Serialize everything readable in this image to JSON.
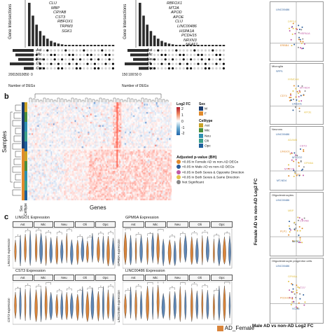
{
  "panel_a": {
    "upset_left": {
      "ylabel": "Gene Intersections",
      "xlabel": "Number of DEGs",
      "celltypes": [
        "Ast",
        "Mic",
        "Neu",
        "Oli",
        "Opc"
      ],
      "x_ticks": [
        "200",
        "150",
        "100",
        "50",
        "0"
      ],
      "genes": [
        "CLU",
        "MBP",
        "CRYAB",
        "CST3",
        "RBFOX1",
        "TRPM3",
        "SGK1"
      ]
    },
    "upset_right": {
      "ylabel": "Gene Intersections",
      "xlabel": "Number of DEGs",
      "celltypes": [
        "Ast",
        "Mic",
        "Neu",
        "Oli",
        "Opc"
      ],
      "x_ticks": [
        "150",
        "100",
        "50",
        "0"
      ],
      "genes": [
        "RBFOX1",
        "MT2A",
        "APOD",
        "APOE",
        "CLU",
        "LINC00486",
        "HSPA1A",
        "PCDH15",
        "NRXN3",
        "NEAT1"
      ]
    }
  },
  "panel_b": {
    "letter": "b",
    "samples_label": "Samples",
    "genes_label": "Genes",
    "side_labels": [
      "Sex",
      "Celltype"
    ],
    "colorbar_title": "Log2 FC",
    "colorbar_ticks": [
      "2",
      "1",
      "0",
      "-1",
      "-2"
    ],
    "sex_title": "Sex",
    "sex_items": [
      {
        "label": "M",
        "color": "#1a3c6e"
      },
      {
        "label": "F",
        "color": "#e08a2c"
      }
    ],
    "celltype_title": "Celltype",
    "celltype_items": [
      {
        "label": "Ast",
        "color": "#c9a227"
      },
      {
        "label": "Mic",
        "color": "#4a8f3c"
      },
      {
        "label": "Neu",
        "color": "#2e8fb0"
      },
      {
        "label": "Oli",
        "color": "#3aa08a"
      },
      {
        "label": "Opc",
        "color": "#1e5f9c"
      }
    ],
    "padj_title": "Adjusted p-value (BH)",
    "padj_items": [
      {
        "label": "<0.05 in Female AD vs non-AD DEGs",
        "color": "#e08a2c"
      },
      {
        "label": "<0.05 in Male AD vs non-AD DEGs",
        "color": "#2c5d9a"
      },
      {
        "label": "<0.05 in Both Sexes & Opposite Direction",
        "color": "#c15aa6"
      },
      {
        "label": "<0.05 in Both Sexes & Same Direction",
        "color": "#e3c24a"
      },
      {
        "label": "Not Significant",
        "color": "#888888"
      }
    ]
  },
  "panel_c": {
    "letter": "c",
    "charts": [
      {
        "title": "LINGO1 Expression",
        "ylabel": "LINGO1 expression"
      },
      {
        "title": "GPM6A Expression",
        "ylabel": "GPM6A expression"
      },
      {
        "title": "CST3 Expression",
        "ylabel": "CST3 expression"
      },
      {
        "title": "LINC00486 Expression",
        "ylabel": "LINC00486 expression"
      }
    ],
    "strips": [
      "Ast",
      "Mic",
      "Neu",
      "Oli",
      "Opc"
    ],
    "legend_female": "AD_Female",
    "female_color": "#d9843a",
    "male_color": "#5e86b5"
  },
  "panel_d": {
    "ylabel": "Female AD vs non-AD Log2 FC",
    "xlabel": "Male AD vs non-AD Log2 FC",
    "subpanels": [
      {
        "title": "",
        "labels": [
          "LINC00486",
          "DPP10",
          "HSPA1A",
          "ERBB4"
        ]
      },
      {
        "title": "Microglia",
        "labels": [
          "SPP1",
          "FRMD4A",
          "MT-ND4",
          "CD74",
          "LINGO1",
          "APOE"
        ]
      },
      {
        "title": "Neurons",
        "labels": [
          "LINC00486",
          "ADAM8",
          "CST3",
          "LINGO1",
          "MT-CO2",
          "GPM6A",
          "MT-CYB",
          "TTL",
          "MT-ND4"
        ]
      },
      {
        "title": "Oligodendrocytes",
        "labels": [
          "LINC00486",
          "MBP",
          "CRYAB",
          "PLP1",
          "APOD"
        ]
      },
      {
        "title": "Oligodendrocyte progenitor cells",
        "labels": [
          "LINC00486",
          "GPM6A",
          "CLU",
          "PCDH15",
          "VCAN"
        ]
      }
    ]
  }
}
